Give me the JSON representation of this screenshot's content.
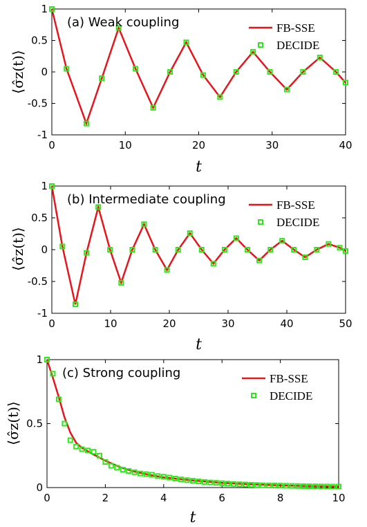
{
  "chart_data": [
    {
      "type": "line",
      "title": "(a) Weak coupling",
      "xlabel": "t",
      "ylabel": "⟨σ̂z(t)⟩",
      "xlim": [
        0,
        40
      ],
      "ylim": [
        -1,
        1
      ],
      "xticks": [
        "0",
        "10",
        "20",
        "30",
        "40"
      ],
      "yticks": [
        "-1",
        "-0.5",
        "0",
        "0.5",
        "1"
      ],
      "grid": false,
      "legend_position": "top-right",
      "series": [
        {
          "name": "FB-SSE",
          "style": "line",
          "color": "#e8141b",
          "x": [
            0,
            2,
            4.7,
            6.8,
            9.1,
            11.4,
            13.8,
            16.1,
            18.3,
            20.6,
            22.9,
            25.1,
            27.4,
            29.7,
            32.0,
            34.2,
            36.5,
            38.7,
            40
          ],
          "y": [
            1,
            0.05,
            -0.82,
            -0.1,
            0.7,
            0.05,
            -0.57,
            0.0,
            0.47,
            -0.05,
            -0.4,
            0.0,
            0.32,
            0.0,
            -0.28,
            0.0,
            0.23,
            0.0,
            -0.17
          ]
        },
        {
          "name": "DECIDE",
          "style": "markers",
          "color": "#2ee81a",
          "x": [
            0,
            2,
            4.7,
            6.8,
            9.1,
            11.4,
            13.8,
            16.1,
            18.3,
            20.6,
            22.9,
            25.1,
            27.4,
            29.7,
            32.0,
            34.2,
            36.5,
            38.7,
            40
          ],
          "y": [
            1,
            0.05,
            -0.82,
            -0.1,
            0.7,
            0.05,
            -0.57,
            0.0,
            0.47,
            -0.05,
            -0.4,
            0.0,
            0.32,
            0.0,
            -0.28,
            0.0,
            0.23,
            0.0,
            -0.17
          ]
        }
      ]
    },
    {
      "type": "line",
      "title": "(b) Intermediate coupling",
      "xlabel": "t",
      "ylabel": "⟨σ̂z(t)⟩",
      "xlim": [
        0,
        50
      ],
      "ylim": [
        -1,
        1
      ],
      "xticks": [
        "0",
        "10",
        "20",
        "30",
        "40",
        "50"
      ],
      "yticks": [
        "-1",
        "-0.5",
        "0",
        "0.5",
        "1"
      ],
      "grid": false,
      "legend_position": "top-right",
      "series": [
        {
          "name": "FB-SSE",
          "style": "line",
          "color": "#e8141b",
          "x": [
            0,
            1.8,
            4.0,
            5.9,
            7.9,
            9.9,
            11.8,
            13.7,
            15.7,
            17.6,
            19.6,
            21.5,
            23.5,
            25.5,
            27.5,
            29.4,
            31.4,
            33.3,
            35.3,
            37.2,
            39.2,
            41.2,
            43.1,
            45.1,
            47.1,
            49,
            50
          ],
          "y": [
            1,
            0.05,
            -0.86,
            -0.05,
            0.67,
            0.0,
            -0.52,
            0.0,
            0.4,
            0.0,
            -0.32,
            0.0,
            0.26,
            0.0,
            -0.22,
            0.0,
            0.18,
            0.0,
            -0.17,
            0.0,
            0.14,
            0.0,
            -0.12,
            0.0,
            0.09,
            0.03,
            -0.02
          ]
        },
        {
          "name": "DECIDE",
          "style": "markers",
          "color": "#2ee81a",
          "x": [
            0,
            1.8,
            4.0,
            5.9,
            7.9,
            9.9,
            11.8,
            13.7,
            15.7,
            17.6,
            19.6,
            21.5,
            23.5,
            25.5,
            27.5,
            29.4,
            31.4,
            33.3,
            35.3,
            37.2,
            39.2,
            41.2,
            43.1,
            45.1,
            47.1,
            49,
            50
          ],
          "y": [
            1,
            0.05,
            -0.86,
            -0.05,
            0.67,
            0.0,
            -0.52,
            0.0,
            0.4,
            0.0,
            -0.32,
            0.0,
            0.26,
            0.0,
            -0.22,
            0.0,
            0.18,
            0.0,
            -0.17,
            0.0,
            0.14,
            0.0,
            -0.12,
            0.0,
            0.09,
            0.03,
            -0.02
          ]
        }
      ]
    },
    {
      "type": "line",
      "title": "(c) Strong coupling",
      "xlabel": "t",
      "ylabel": "⟨σ̂z(t)⟩",
      "xlim": [
        0,
        10
      ],
      "ylim": [
        0,
        1
      ],
      "xticks": [
        "0",
        "2",
        "4",
        "6",
        "8",
        "10"
      ],
      "yticks": [
        "0",
        "0.5",
        "1"
      ],
      "grid": false,
      "legend_position": "top-right",
      "series": [
        {
          "name": "FB-SSE",
          "style": "line",
          "color": "#e8141b",
          "x": [
            0,
            0.2,
            0.4,
            0.6,
            0.8,
            1.0,
            1.2,
            1.5,
            2.0,
            2.5,
            3.0,
            3.5,
            4.0,
            5.0,
            6.0,
            7.0,
            8.0,
            9.0,
            10.0
          ],
          "y": [
            1,
            0.86,
            0.71,
            0.55,
            0.43,
            0.35,
            0.31,
            0.27,
            0.21,
            0.16,
            0.125,
            0.1,
            0.08,
            0.055,
            0.037,
            0.025,
            0.017,
            0.012,
            0.008
          ]
        },
        {
          "name": "DECIDE",
          "style": "markers",
          "color": "#2ee81a",
          "x": [
            0,
            0.2,
            0.4,
            0.6,
            0.8,
            1.0,
            1.2,
            1.4,
            1.6,
            1.8,
            2.0,
            2.2,
            2.4,
            2.6,
            2.8,
            3.0,
            3.2,
            3.4,
            3.6,
            3.8,
            4.0,
            4.2,
            4.4,
            4.6,
            4.8,
            5.0,
            5.2,
            5.4,
            5.6,
            5.8,
            6.0,
            6.2,
            6.4,
            6.6,
            6.8,
            7.0,
            7.2,
            7.4,
            7.6,
            7.8,
            8.0,
            8.2,
            8.4,
            8.6,
            8.8,
            9.0,
            9.2,
            9.4,
            9.6,
            9.8,
            10.0
          ],
          "y": [
            1,
            0.89,
            0.69,
            0.5,
            0.37,
            0.32,
            0.3,
            0.29,
            0.28,
            0.25,
            0.2,
            0.17,
            0.155,
            0.14,
            0.13,
            0.12,
            0.11,
            0.105,
            0.1,
            0.09,
            0.085,
            0.078,
            0.07,
            0.064,
            0.058,
            0.053,
            0.048,
            0.044,
            0.04,
            0.037,
            0.034,
            0.031,
            0.028,
            0.026,
            0.024,
            0.022,
            0.02,
            0.018,
            0.017,
            0.016,
            0.015,
            0.014,
            0.013,
            0.012,
            0.011,
            0.01,
            0.0095,
            0.009,
            0.0085,
            0.008,
            0.008
          ]
        }
      ]
    }
  ]
}
